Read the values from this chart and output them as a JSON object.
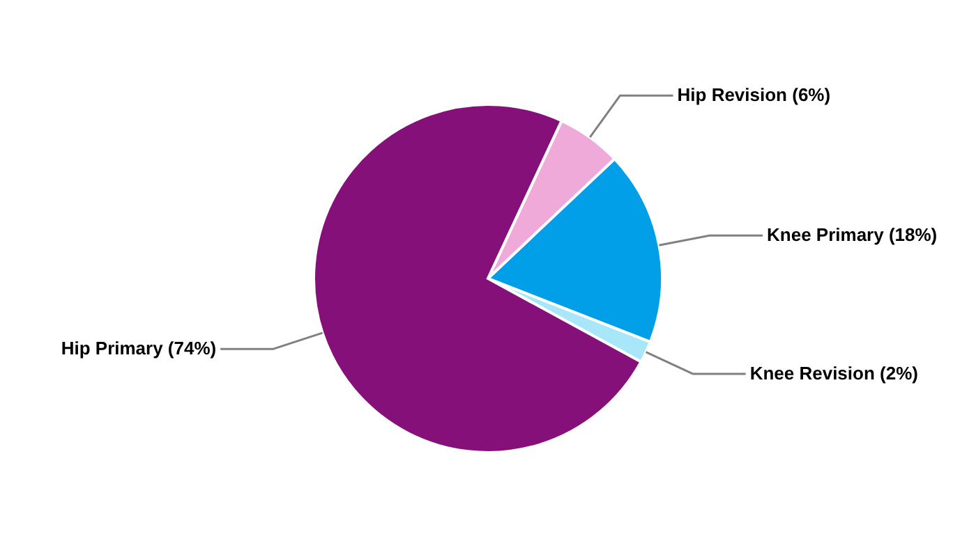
{
  "chart_data": {
    "type": "pie",
    "categories": [
      "Hip Revision",
      "Knee Primary",
      "Knee Revision",
      "Hip Primary"
    ],
    "values": [
      6,
      18,
      2,
      74
    ],
    "colors": [
      "#f0aad9",
      "#009fe8",
      "#a8e6fa",
      "#86107a"
    ],
    "value_labels": [
      "(6%)",
      "(18%)",
      "(2%)",
      "(74%)"
    ]
  }
}
